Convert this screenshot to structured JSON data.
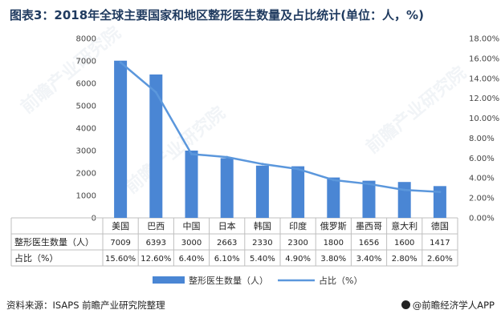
{
  "title": "图表3：2018年全球主要国家和地区整形医生数量及占比统计(单位：人，%)",
  "chart_data": {
    "type": "bar",
    "categories": [
      "美国",
      "巴西",
      "中国",
      "日本",
      "韩国",
      "印度",
      "俄罗斯",
      "墨西哥",
      "意大利",
      "德国"
    ],
    "series": [
      {
        "name": "整形医生数量（人）",
        "type": "bar",
        "axis": "left",
        "color": "#4a86d4",
        "values": [
          7009,
          6393,
          3000,
          2663,
          2330,
          2300,
          1800,
          1656,
          1600,
          1417
        ],
        "labels": [
          "7009",
          "6393",
          "3000",
          "2663",
          "2330",
          "2300",
          "1800",
          "1656",
          "1600",
          "1417"
        ]
      },
      {
        "name": "占比（%）",
        "type": "line",
        "axis": "right",
        "color": "#5b97dc",
        "values": [
          15.6,
          12.6,
          6.4,
          6.1,
          5.4,
          4.9,
          3.8,
          3.4,
          2.8,
          2.6
        ],
        "labels": [
          "15.60%",
          "12.60%",
          "6.40%",
          "6.10%",
          "5.40%",
          "4.90%",
          "3.80%",
          "3.40%",
          "2.80%",
          "2.60%"
        ]
      }
    ],
    "table_row_labels": [
      "整形医生数量（人）",
      "占比（%）"
    ],
    "ylim_left": [
      0,
      8000
    ],
    "yticks_left": [
      "0",
      "1000",
      "2000",
      "3000",
      "4000",
      "5000",
      "6000",
      "7000",
      "8000"
    ],
    "ylim_right": [
      0,
      18
    ],
    "yticks_right": [
      "0.00%",
      "2.00%",
      "4.00%",
      "6.00%",
      "8.00%",
      "10.00%",
      "12.00%",
      "14.00%",
      "16.00%",
      "18.00%"
    ],
    "legend_position": "bottom",
    "grid": false
  },
  "footer": {
    "source": "资料来源：ISAPS 前瞻产业研究院整理",
    "brand": "@前瞻经济学人APP"
  }
}
